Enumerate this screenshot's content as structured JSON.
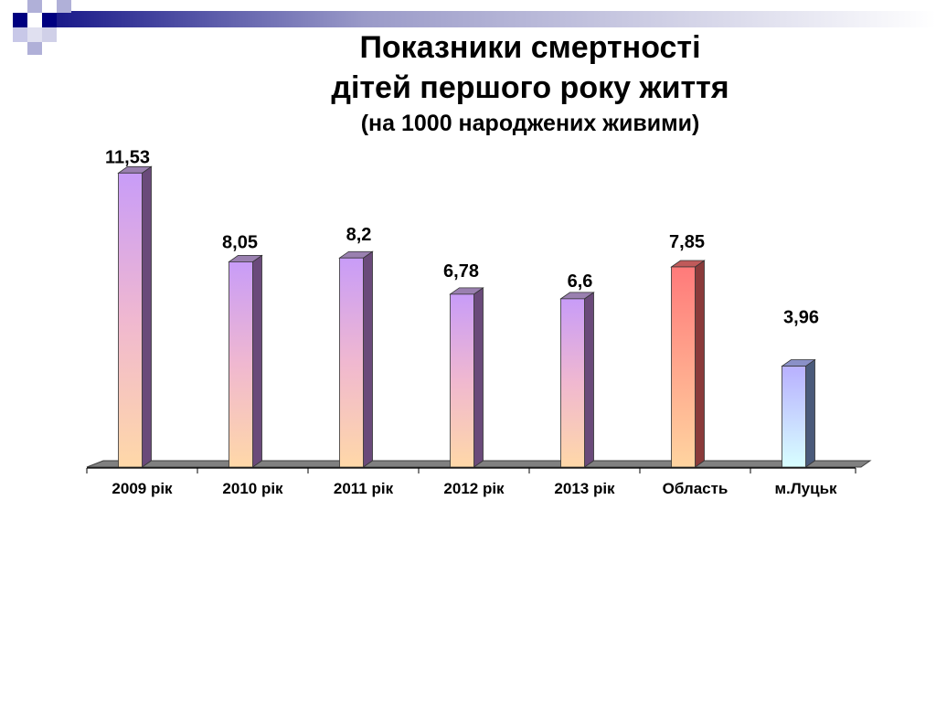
{
  "slide": {
    "title_line1": "Показники смертності",
    "title_line2": "дітей першого року життя",
    "subtitle": "(на 1000 народжених живими)"
  },
  "colors": {
    "deco_dark": "#000080",
    "deco_light": "#b0b0d8",
    "bar_top": "#c89cf8",
    "bar_mid": "#f0b8d0",
    "bar_bottom": "#ffd8a8",
    "bar_oblast_top": "#ff7a7a",
    "bar_oblast_bottom": "#ffd4a0",
    "bar_lutsk_top": "#b8b0ff",
    "bar_lutsk_bottom": "#d8ffff",
    "floor": "#808080"
  },
  "chart_data": {
    "type": "bar",
    "style": "3d-column",
    "title": "Показники смертності дітей першого року життя",
    "subtitle": "(на 1000 народжених живими)",
    "categories": [
      "2009 рік",
      "2010 рік",
      "2011 рік",
      "2012 рік",
      "2013 рік",
      "Область",
      "м.Луцьк"
    ],
    "values": [
      11.53,
      8.05,
      8.2,
      6.78,
      6.6,
      7.85,
      3.96
    ],
    "value_labels": [
      "11,53",
      "8,05",
      "8,2",
      "6,78",
      "6,6",
      "7,85",
      "3,96"
    ],
    "ylim": [
      0,
      12
    ],
    "grid": false,
    "legend": "none",
    "y_axis_visible": false
  }
}
